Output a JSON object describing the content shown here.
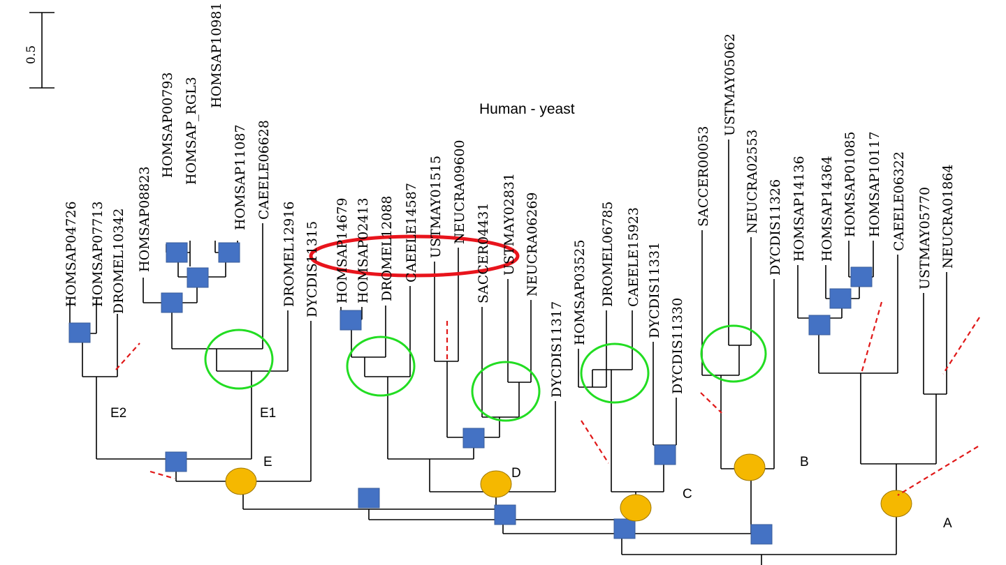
{
  "title": "Human - yeast",
  "scale_bar": {
    "label": "0.5"
  },
  "clades": [
    {
      "id": "E2",
      "label": "E2"
    },
    {
      "id": "E1",
      "label": "E1"
    },
    {
      "id": "E",
      "label": "E"
    },
    {
      "id": "D",
      "label": "D"
    },
    {
      "id": "C",
      "label": "C"
    },
    {
      "id": "B",
      "label": "B"
    },
    {
      "id": "A",
      "label": "A"
    }
  ],
  "leaves": [
    "HOMSAP04726",
    "HOMSAP07713",
    "DROMEL10342",
    "HOMSAP08823",
    "HOMSAP00793",
    "HOMSAP_RGL3",
    "HOMSAP11087",
    "HOMSAP10981",
    "CAEELE06628",
    "DROMEL12916",
    "DYCDIS11315",
    "HOMSAP14679",
    "HOMSAP02413",
    "DROMEL12088",
    "CAEELE14587",
    "USTMAY01515",
    "NEUCRA09600",
    "SACCER04431",
    "USTMAY02831",
    "NEUCRA06269",
    "DYCDIS11317",
    "HOMSAP03525",
    "DROMEL06785",
    "CAEELE15923",
    "DYCDIS11331",
    "DYCDIS11330",
    "SACCER00053",
    "USTMAY05062",
    "NEUCRA02553",
    "DYCDIS11326",
    "HOMSAP14136",
    "HOMSAP14364",
    "HOMSAP01085",
    "HOMSAP10117",
    "CAEELE06322",
    "USTMAY05770",
    "NEUCRA01864"
  ],
  "colors": {
    "duplication_square": "#4472c4",
    "speciation_circle": "#f5b800",
    "green_ellipse": "#22dd22",
    "red_ellipse": "#e8141c",
    "dashed_marker": "#e01818"
  }
}
